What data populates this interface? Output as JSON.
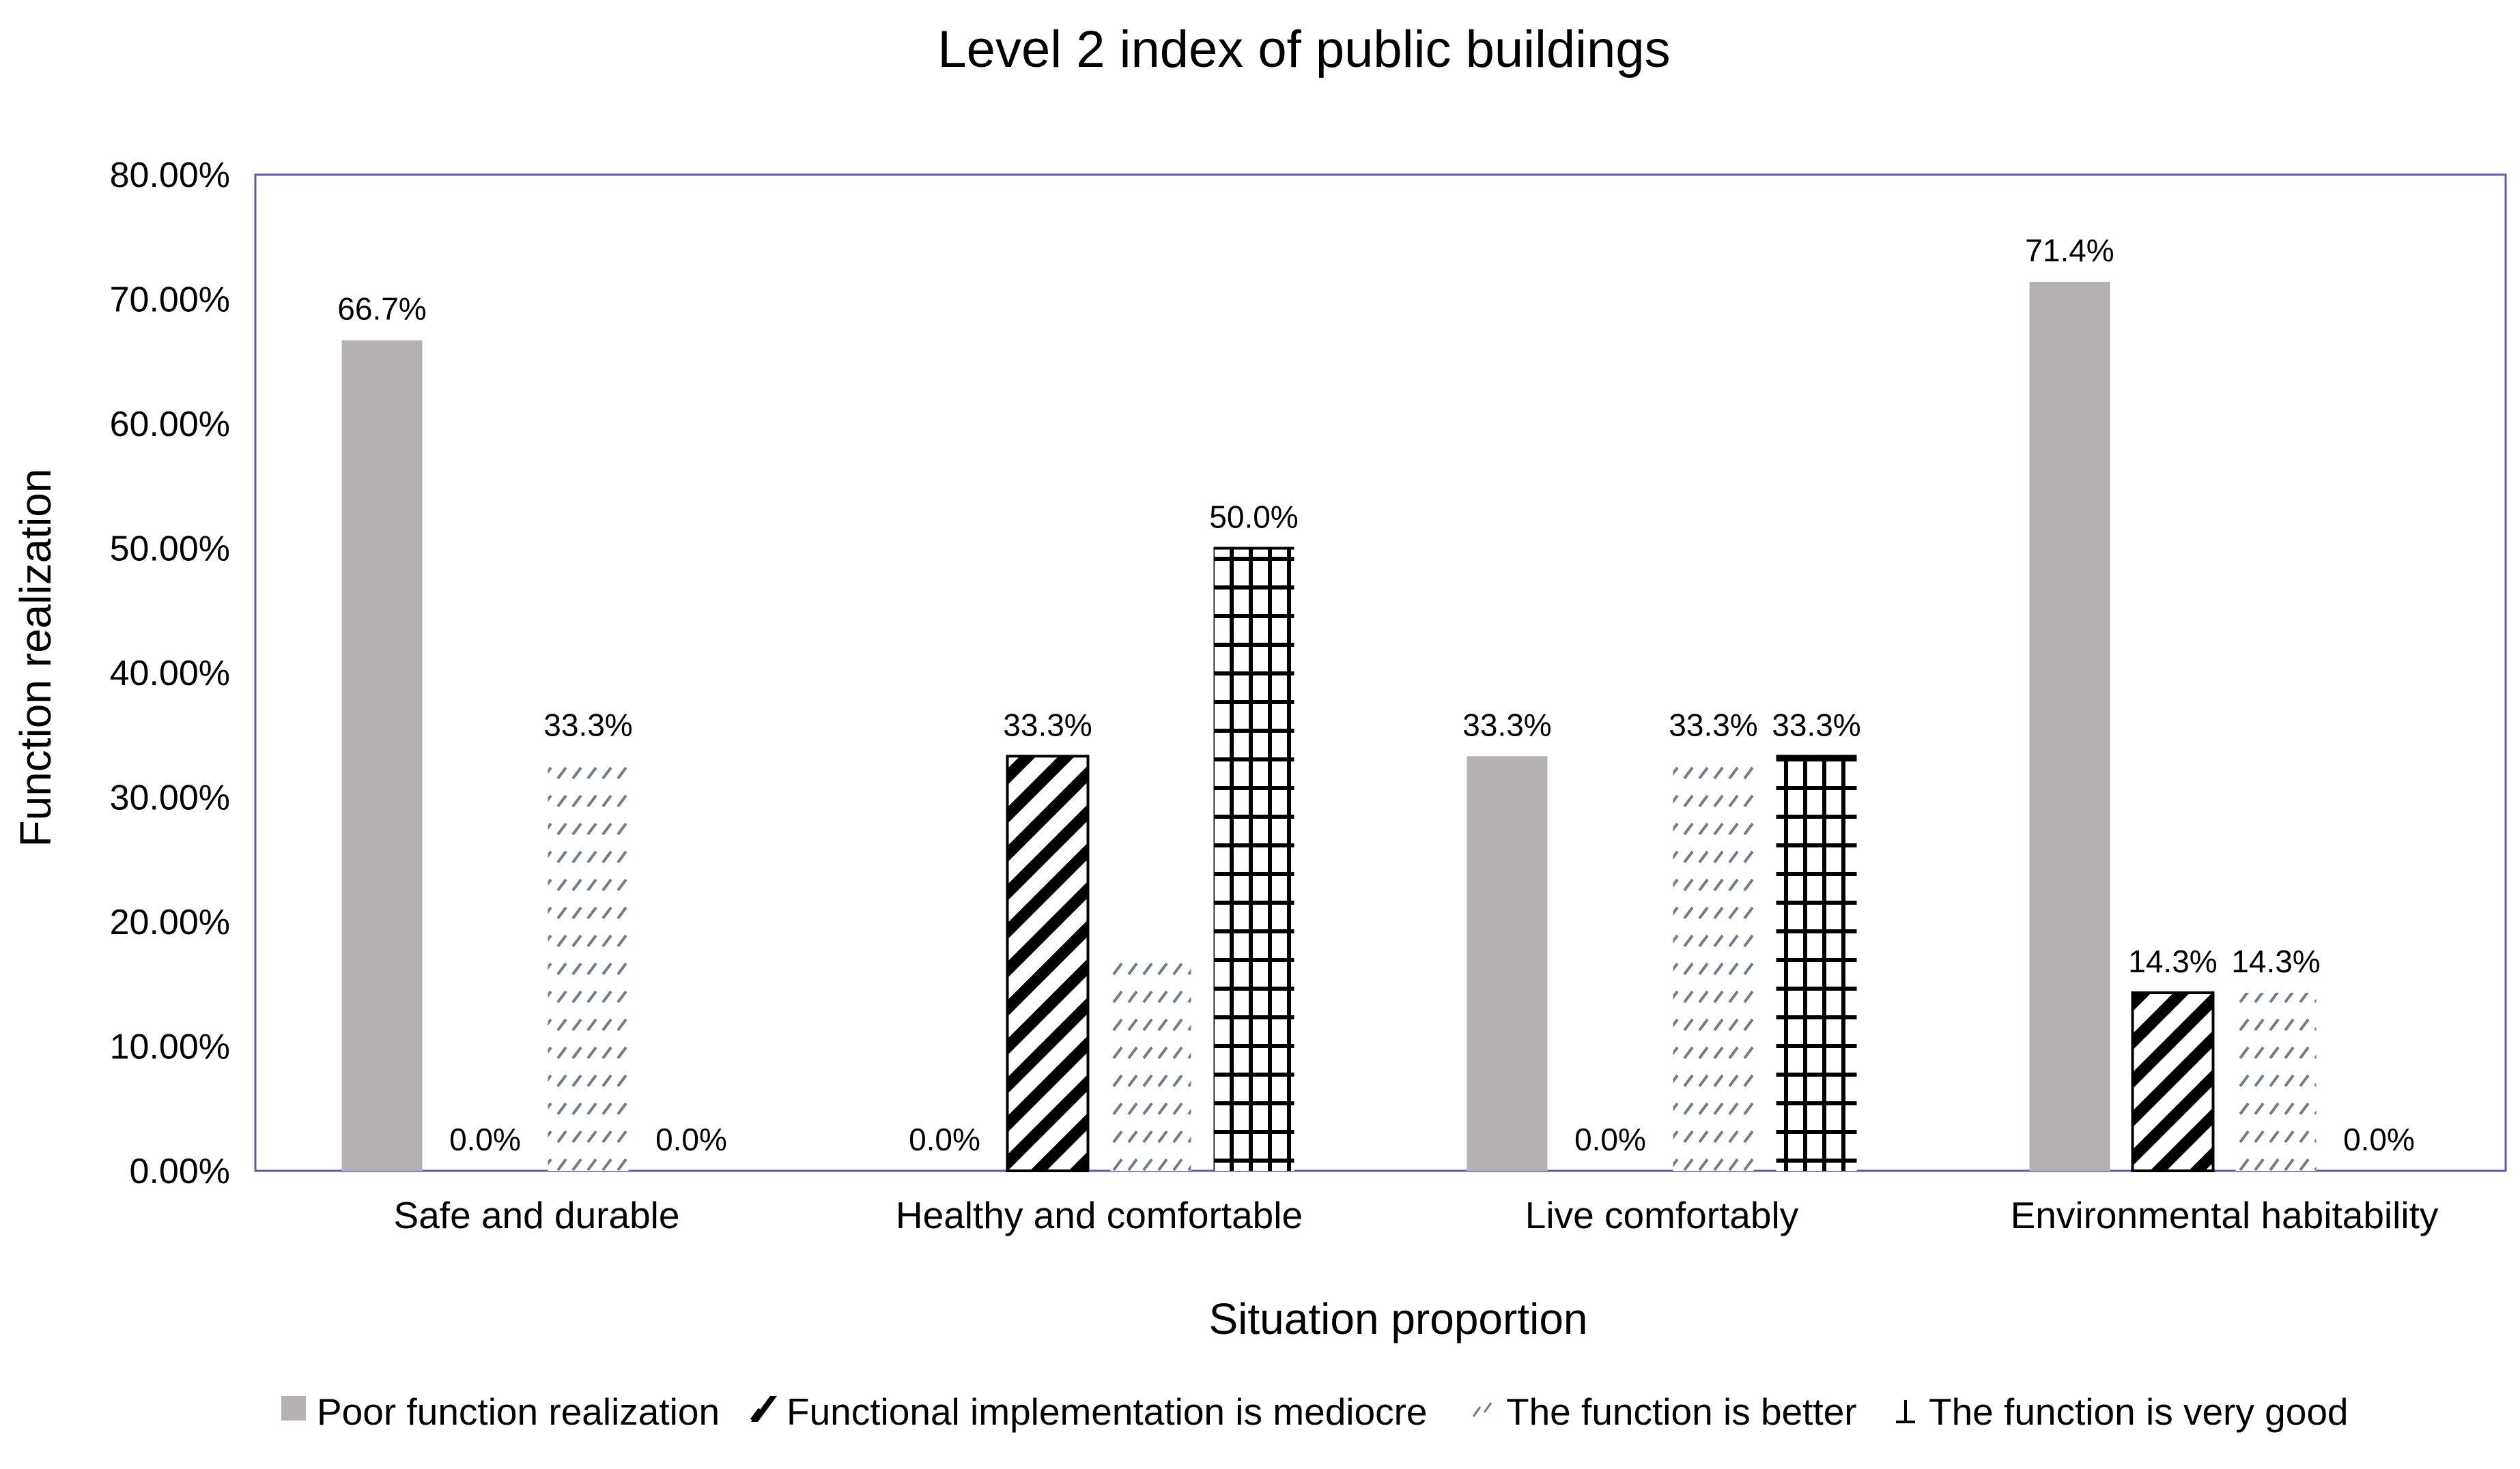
{
  "chart_data": {
    "type": "bar",
    "title": "Level 2 index of public buildings",
    "xlabel": "Situation proportion",
    "ylabel": "Function realization",
    "ylim": [
      0,
      80
    ],
    "yticks": [
      "0.00%",
      "10.00%",
      "20.00%",
      "30.00%",
      "40.00%",
      "50.00%",
      "60.00%",
      "70.00%",
      "80.00%"
    ],
    "grid": false,
    "legend_position": "bottom",
    "categories": [
      "Safe and durable",
      "Healthy and comfortable",
      "Live comfortably",
      "Environmental habitability"
    ],
    "series": [
      {
        "name": "Poor function realization",
        "pattern": "solid-gray",
        "color": "#b5b1b0",
        "values": [
          66.7,
          0.0,
          33.3,
          71.4
        ],
        "labels": [
          "66.7%",
          "0.0%",
          "33.3%",
          "71.4%"
        ]
      },
      {
        "name": "Functional implementation is mediocre",
        "pattern": "wide-diagonal",
        "color": "#000000",
        "values": [
          0.0,
          33.3,
          0.0,
          14.3
        ],
        "labels": [
          "0.0%",
          "33.3%",
          "0.0%",
          "14.3%"
        ]
      },
      {
        "name": "The function is better",
        "pattern": "dashed-diagonal",
        "color": "#6f7d8c",
        "values": [
          33.3,
          16.7,
          33.3,
          14.3
        ],
        "labels": [
          "33.3%",
          "",
          "33.3%",
          "14.3%"
        ]
      },
      {
        "name": "The function is very good",
        "pattern": "grid",
        "color": "#000000",
        "values": [
          0.0,
          50.0,
          33.3,
          0.0
        ],
        "labels": [
          "0.0%",
          "50.0%",
          "33.3%",
          "0.0%"
        ]
      }
    ]
  }
}
